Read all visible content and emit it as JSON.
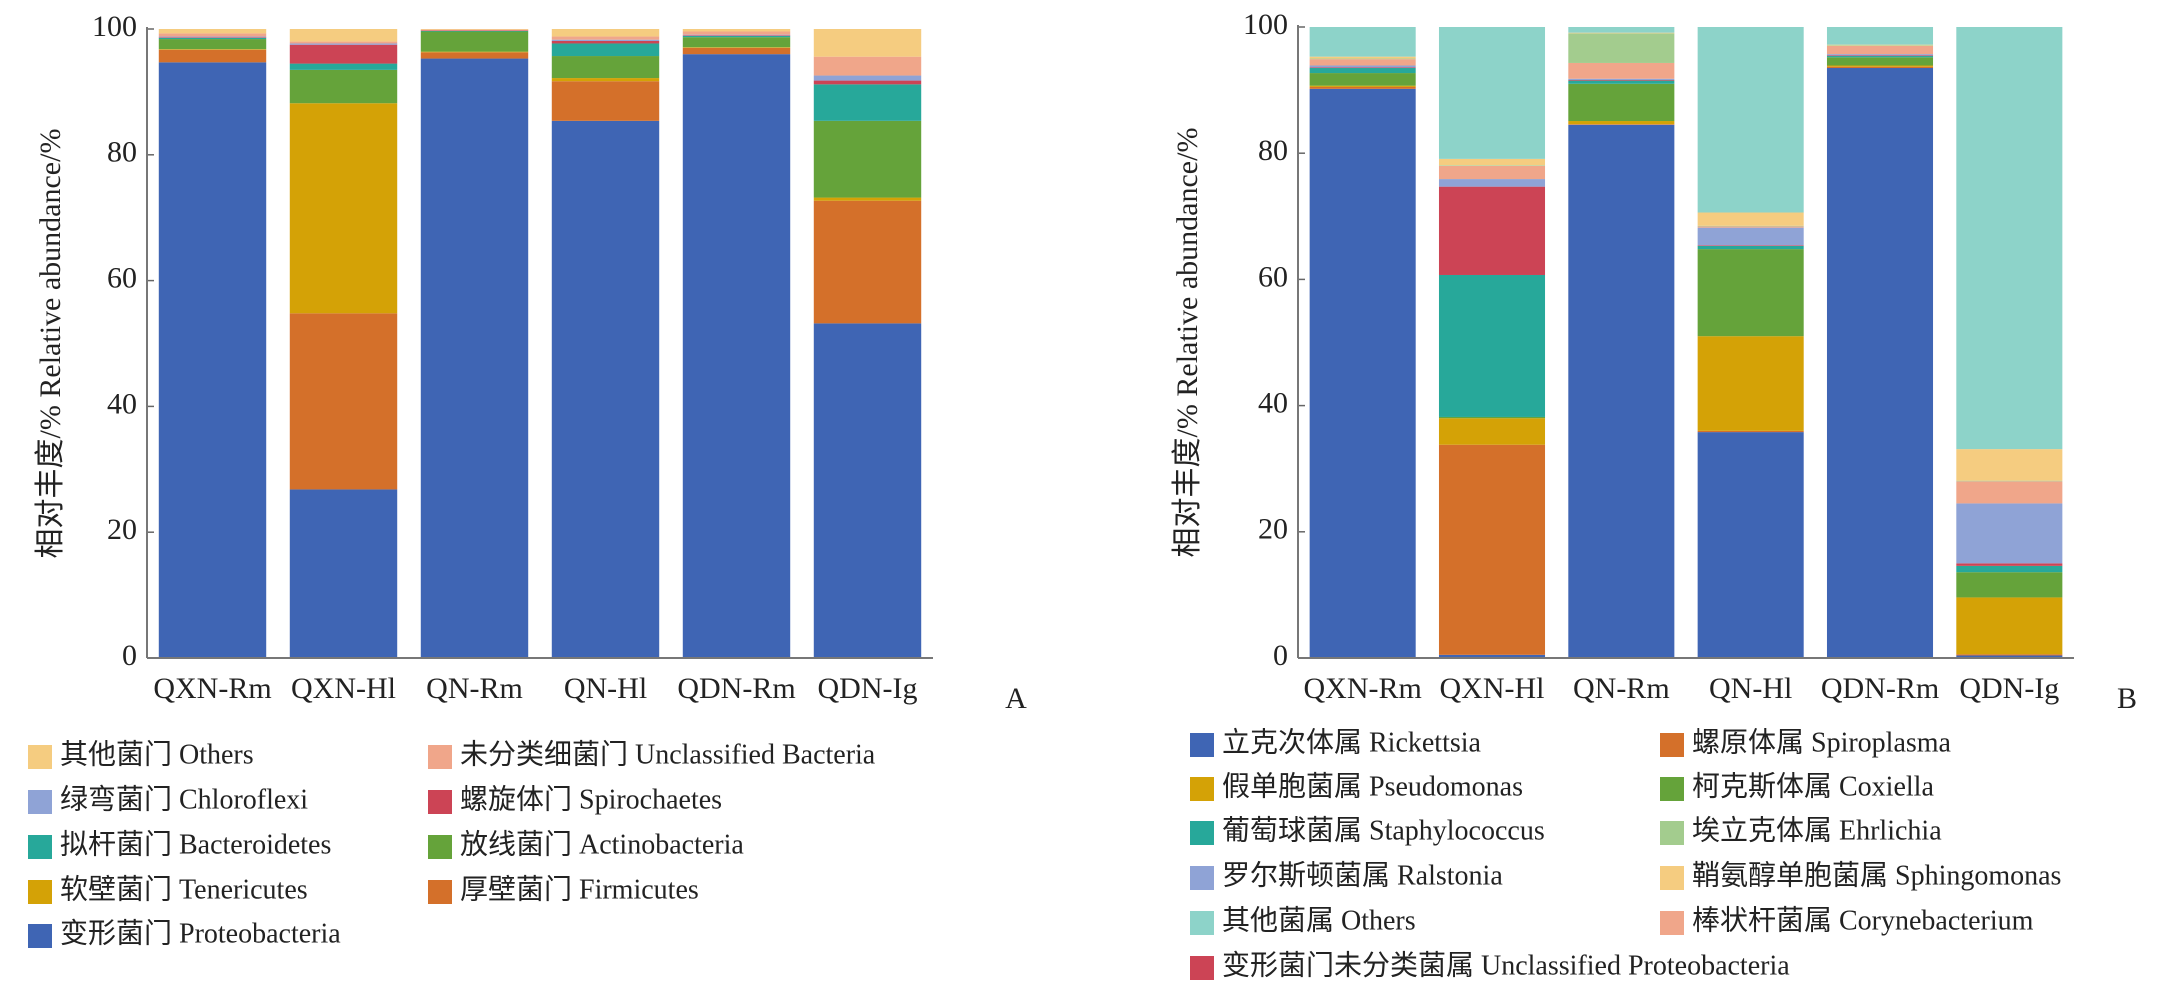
{
  "chart_data": [
    {
      "type": "stacked_bar",
      "panel": "A",
      "y_label": "相对丰度/%  Relative  abundance/%",
      "categories": [
        "QXN-Rm",
        "QXN-Hl",
        "QN-Rm",
        "QN-Hl",
        "QDN-Rm",
        "QDN-Ig"
      ],
      "ylim": [
        0,
        100
      ],
      "yticks": [
        0,
        20,
        40,
        60,
        80,
        100
      ],
      "series": [
        {
          "name": "变形菌门  Proteobacteria",
          "color": "#3f65b4",
          "values": [
            94.7,
            26.8,
            95.3,
            85.4,
            96.0,
            53.2
          ]
        },
        {
          "name": "厚壁菌门  Firmicutes",
          "color": "#d4702a",
          "values": [
            2.0,
            28.0,
            1.0,
            6.3,
            1.0,
            19.5
          ]
        },
        {
          "name": "软壁菌门  Tenericutes",
          "color": "#d4a206",
          "values": [
            0.1,
            33.4,
            0.1,
            0.5,
            0.1,
            0.5
          ]
        },
        {
          "name": "放线菌门  Actinobacteria",
          "color": "#65a33a",
          "values": [
            1.6,
            5.3,
            3.2,
            3.5,
            1.6,
            12.2
          ]
        },
        {
          "name": "拟杆菌门  Bacteroidetes",
          "color": "#27a89a",
          "values": [
            0.2,
            1.0,
            0.1,
            2.0,
            0.2,
            5.8
          ]
        },
        {
          "name": "螺旋体门  Spirochaetes",
          "color": "#cc4455",
          "values": [
            0.1,
            3.0,
            0.1,
            0.4,
            0.1,
            0.6
          ]
        },
        {
          "name": "绿弯菌门  Chloroflexi",
          "color": "#8fa3d6",
          "values": [
            0.1,
            0.2,
            0.0,
            0.2,
            0.1,
            0.8
          ]
        },
        {
          "name": "未分类细菌门  Unclassified  Bacteria",
          "color": "#f0a68a",
          "values": [
            0.5,
            0.3,
            0.1,
            0.5,
            0.5,
            3.0
          ]
        },
        {
          "name": "其他菌门  Others",
          "color": "#f5cc80",
          "values": [
            0.7,
            2.0,
            0.1,
            1.2,
            0.4,
            4.4
          ]
        }
      ]
    },
    {
      "type": "stacked_bar",
      "panel": "B",
      "y_label": "相对丰度/%  Relative  abundance/%",
      "categories": [
        "QXN-Rm",
        "QXN-Hl",
        "QN-Rm",
        "QN-Hl",
        "QDN-Rm",
        "QDN-Ig"
      ],
      "ylim": [
        0,
        100
      ],
      "yticks": [
        0,
        20,
        40,
        60,
        80,
        100
      ],
      "series": [
        {
          "name": "立克次体属  Rickettsia",
          "color": "#3f65b4",
          "values": [
            90.2,
            0.5,
            84.5,
            35.8,
            93.5,
            0.4
          ]
        },
        {
          "name": "螺原体属  Spiroplasma",
          "color": "#d4702a",
          "values": [
            0.3,
            33.3,
            0.1,
            0.2,
            0.2,
            0.2
          ]
        },
        {
          "name": "假单胞菌属  Pseudomonas",
          "color": "#d4a206",
          "values": [
            0.2,
            4.2,
            0.5,
            15.0,
            0.2,
            9.0
          ]
        },
        {
          "name": "柯克斯体属  Coxiella",
          "color": "#65a33a",
          "values": [
            2.0,
            0.2,
            5.9,
            13.8,
            1.3,
            4.0
          ]
        },
        {
          "name": "葡萄球菌属  Staphylococcus",
          "color": "#27a89a",
          "values": [
            0.8,
            22.5,
            0.5,
            0.5,
            0.2,
            1.0
          ]
        },
        {
          "name": "变形菌门未分类菌属  Unclassified  Proteobacteria",
          "color": "#cc4455",
          "values": [
            0.1,
            14.0,
            0.1,
            0.1,
            0.1,
            0.4
          ]
        },
        {
          "name": "罗尔斯顿菌属  Ralstonia",
          "color": "#8fa3d6",
          "values": [
            0.3,
            1.2,
            0.2,
            2.8,
            0.2,
            9.5
          ]
        },
        {
          "name": "棒状杆菌属  Corynebacterium",
          "color": "#f0a68a",
          "values": [
            1.0,
            2.1,
            2.5,
            0.2,
            1.3,
            3.5
          ]
        },
        {
          "name": "埃立克体属  Ehrlichia",
          "color": "#a3cc8e",
          "values": [
            0.1,
            0.1,
            4.7,
            0.1,
            0.1,
            0.1
          ]
        },
        {
          "name": "鞘氨醇单胞菌属  Sphingomonas",
          "color": "#f5cc80",
          "values": [
            0.3,
            1.0,
            0.1,
            2.1,
            0.1,
            5.0
          ]
        },
        {
          "name": "其他菌属  Others",
          "color": "#8dd3c9",
          "values": [
            4.7,
            20.9,
            0.9,
            29.4,
            2.8,
            66.9
          ]
        }
      ]
    }
  ]
}
